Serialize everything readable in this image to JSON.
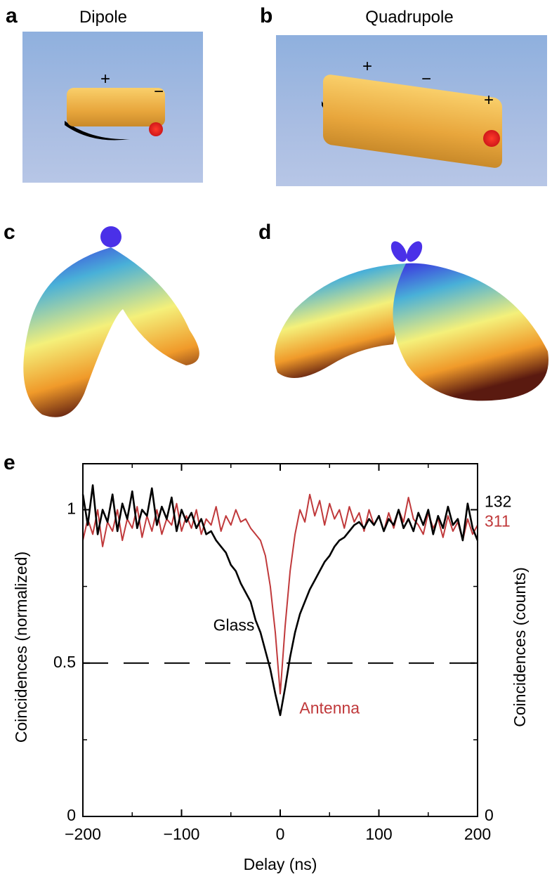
{
  "panels": [
    {
      "letter": "a",
      "title": "Dipole",
      "charges": [
        "+",
        "−"
      ]
    },
    {
      "letter": "b",
      "title": "Quadrupole",
      "charges": [
        "+",
        "−",
        "+"
      ]
    },
    {
      "letter": "c"
    },
    {
      "letter": "d"
    }
  ],
  "chart_data": {
    "type": "line",
    "panel_label": "e",
    "x_label": "Delay (ns)",
    "y_label": "Coincidences (normalized)",
    "y2_label": "Coincidences (counts)",
    "x": [
      -200,
      -195,
      -190,
      -185,
      -180,
      -175,
      -170,
      -165,
      -160,
      -155,
      -150,
      -145,
      -140,
      -135,
      -130,
      -125,
      -120,
      -115,
      -110,
      -105,
      -100,
      -95,
      -90,
      -85,
      -80,
      -75,
      -70,
      -65,
      -60,
      -55,
      -50,
      -45,
      -40,
      -35,
      -30,
      -25,
      -20,
      -15,
      -10,
      -5,
      0,
      5,
      10,
      15,
      20,
      25,
      30,
      35,
      40,
      45,
      50,
      55,
      60,
      65,
      70,
      75,
      80,
      85,
      90,
      95,
      100,
      105,
      110,
      115,
      120,
      125,
      130,
      135,
      140,
      145,
      150,
      155,
      160,
      165,
      170,
      175,
      180,
      185,
      190,
      195,
      200
    ],
    "series": [
      {
        "name": "Antenna",
        "color": "#c0393b",
        "values": [
          0.9,
          0.97,
          0.92,
          1.0,
          0.88,
          0.96,
          0.93,
          1.0,
          0.9,
          0.97,
          0.94,
          1.01,
          0.91,
          0.98,
          0.93,
          1.0,
          0.92,
          0.97,
          0.95,
          1.02,
          0.93,
          0.98,
          0.94,
          1.0,
          0.92,
          0.97,
          0.95,
          1.01,
          0.93,
          0.98,
          0.95,
          1.0,
          0.96,
          0.97,
          0.94,
          0.92,
          0.9,
          0.85,
          0.75,
          0.6,
          0.4,
          0.62,
          0.8,
          0.92,
          1.0,
          0.96,
          1.05,
          0.98,
          1.03,
          0.95,
          1.02,
          0.97,
          1.0,
          0.94,
          1.01,
          0.96,
          0.99,
          0.93,
          1.0,
          0.95,
          0.98,
          0.93,
          0.99,
          0.94,
          1.0,
          0.96,
          1.04,
          0.97,
          0.95,
          0.92,
          0.99,
          0.94,
          0.97,
          0.91,
          0.98,
          0.93,
          0.96,
          0.9,
          0.97,
          0.92,
          0.95
        ]
      },
      {
        "name": "Glass",
        "color": "#000000",
        "values": [
          1.05,
          0.95,
          1.08,
          0.92,
          1.0,
          0.96,
          1.05,
          0.93,
          1.02,
          0.97,
          1.06,
          0.94,
          1.0,
          0.98,
          1.07,
          0.95,
          1.01,
          0.97,
          1.04,
          0.93,
          1.0,
          0.96,
          0.99,
          0.94,
          0.97,
          0.92,
          0.93,
          0.9,
          0.88,
          0.86,
          0.82,
          0.8,
          0.76,
          0.73,
          0.7,
          0.64,
          0.6,
          0.54,
          0.48,
          0.4,
          0.33,
          0.42,
          0.52,
          0.6,
          0.66,
          0.7,
          0.74,
          0.77,
          0.8,
          0.83,
          0.85,
          0.88,
          0.9,
          0.91,
          0.93,
          0.95,
          0.96,
          0.94,
          0.97,
          0.95,
          0.98,
          0.93,
          0.97,
          0.95,
          1.0,
          0.94,
          0.97,
          0.93,
          0.99,
          0.95,
          1.0,
          0.92,
          0.98,
          0.94,
          1.01,
          0.95,
          0.97,
          0.9,
          1.02,
          0.94,
          0.9
        ]
      }
    ],
    "xlim": [
      -200,
      200
    ],
    "xticks": [
      {
        "value": -200,
        "label": "−200"
      },
      {
        "value": -100,
        "label": "−100"
      },
      0,
      100,
      200
    ],
    "xminorticks": [
      -150,
      -50,
      50,
      150
    ],
    "ylim": [
      0,
      1.15
    ],
    "yticks": [
      0,
      0.5,
      1
    ],
    "yminorticks": [
      0.25,
      0.75
    ],
    "y2lim": [
      0,
      151.8
    ],
    "y2ticks": [
      0,
      132
    ],
    "y2color": "#000000",
    "y3lim": [
      0,
      357.6
    ],
    "y3ticks": [
      311
    ],
    "y3color": "#c0393b",
    "reference_line": 0.5
  }
}
